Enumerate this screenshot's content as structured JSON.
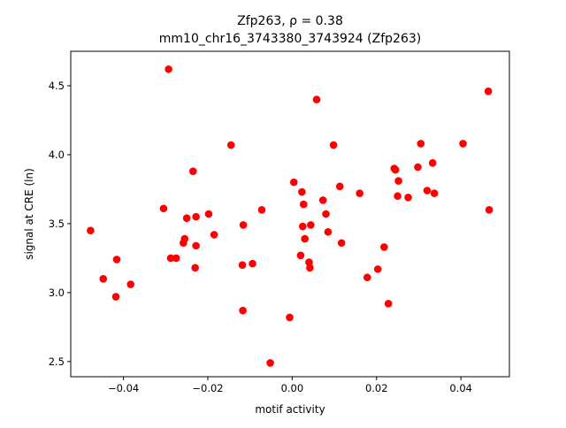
{
  "figure": {
    "title_line1": "Zfp263, ρ = 0.38",
    "title_line2": "mm10_chr16_3743380_3743924 (Zfp263)",
    "xlabel": "motif activity",
    "ylabel": "signal at CRE (ln)"
  },
  "chart_data": {
    "type": "scatter",
    "title": "Zfp263, ρ = 0.38\nmm10_chr16_3743380_3743924 (Zfp263)",
    "xlabel": "motif activity",
    "ylabel": "signal at CRE (ln)",
    "xlim": [
      -0.0525,
      0.0515
    ],
    "ylim": [
      2.39,
      4.75
    ],
    "xticks": [
      -0.04,
      -0.02,
      0.0,
      0.02,
      0.04
    ],
    "xtick_labels": [
      "−0.04",
      "−0.02",
      "0.00",
      "0.02",
      "0.04"
    ],
    "yticks": [
      2.5,
      3.0,
      3.5,
      4.0,
      4.5
    ],
    "ytick_labels": [
      "2.5",
      "3.0",
      "3.5",
      "4.0",
      "4.5"
    ],
    "grid": false,
    "marker_color": "#ff0000",
    "points": [
      {
        "x": -0.0478,
        "y": 3.45
      },
      {
        "x": -0.0448,
        "y": 3.1
      },
      {
        "x": -0.0418,
        "y": 2.97
      },
      {
        "x": -0.0416,
        "y": 3.24
      },
      {
        "x": -0.0383,
        "y": 3.06
      },
      {
        "x": -0.0305,
        "y": 3.61
      },
      {
        "x": -0.0293,
        "y": 4.62
      },
      {
        "x": -0.0288,
        "y": 3.25
      },
      {
        "x": -0.0275,
        "y": 3.25
      },
      {
        "x": -0.0258,
        "y": 3.36
      },
      {
        "x": -0.0255,
        "y": 3.39
      },
      {
        "x": -0.025,
        "y": 3.54
      },
      {
        "x": -0.0235,
        "y": 3.88
      },
      {
        "x": -0.023,
        "y": 3.18
      },
      {
        "x": -0.0228,
        "y": 3.55
      },
      {
        "x": -0.0228,
        "y": 3.34
      },
      {
        "x": -0.0198,
        "y": 3.57
      },
      {
        "x": -0.0185,
        "y": 3.42
      },
      {
        "x": -0.0145,
        "y": 4.07
      },
      {
        "x": -0.0118,
        "y": 3.2
      },
      {
        "x": -0.0117,
        "y": 2.87
      },
      {
        "x": -0.0116,
        "y": 3.49
      },
      {
        "x": -0.0094,
        "y": 3.21
      },
      {
        "x": -0.0072,
        "y": 3.6
      },
      {
        "x": -0.0052,
        "y": 2.49
      },
      {
        "x": -0.0006,
        "y": 2.82
      },
      {
        "x": 0.0004,
        "y": 3.8
      },
      {
        "x": 0.002,
        "y": 3.27
      },
      {
        "x": 0.0023,
        "y": 3.73
      },
      {
        "x": 0.0025,
        "y": 3.48
      },
      {
        "x": 0.0027,
        "y": 3.64
      },
      {
        "x": 0.003,
        "y": 3.39
      },
      {
        "x": 0.004,
        "y": 3.22
      },
      {
        "x": 0.0042,
        "y": 3.18
      },
      {
        "x": 0.0044,
        "y": 3.49
      },
      {
        "x": 0.0058,
        "y": 4.4
      },
      {
        "x": 0.0073,
        "y": 3.67
      },
      {
        "x": 0.008,
        "y": 3.57
      },
      {
        "x": 0.0085,
        "y": 3.44
      },
      {
        "x": 0.0098,
        "y": 4.07
      },
      {
        "x": 0.0113,
        "y": 3.77
      },
      {
        "x": 0.0117,
        "y": 3.36
      },
      {
        "x": 0.016,
        "y": 3.72
      },
      {
        "x": 0.0178,
        "y": 3.11
      },
      {
        "x": 0.0203,
        "y": 3.17
      },
      {
        "x": 0.0218,
        "y": 3.33
      },
      {
        "x": 0.0228,
        "y": 2.92
      },
      {
        "x": 0.0242,
        "y": 3.9
      },
      {
        "x": 0.0245,
        "y": 3.89
      },
      {
        "x": 0.025,
        "y": 3.7
      },
      {
        "x": 0.0252,
        "y": 3.81
      },
      {
        "x": 0.0275,
        "y": 3.69
      },
      {
        "x": 0.0298,
        "y": 3.91
      },
      {
        "x": 0.0305,
        "y": 4.08
      },
      {
        "x": 0.032,
        "y": 3.74
      },
      {
        "x": 0.0333,
        "y": 3.94
      },
      {
        "x": 0.0337,
        "y": 3.72
      },
      {
        "x": 0.0405,
        "y": 4.08
      },
      {
        "x": 0.0465,
        "y": 4.46
      },
      {
        "x": 0.0467,
        "y": 3.6
      }
    ]
  }
}
